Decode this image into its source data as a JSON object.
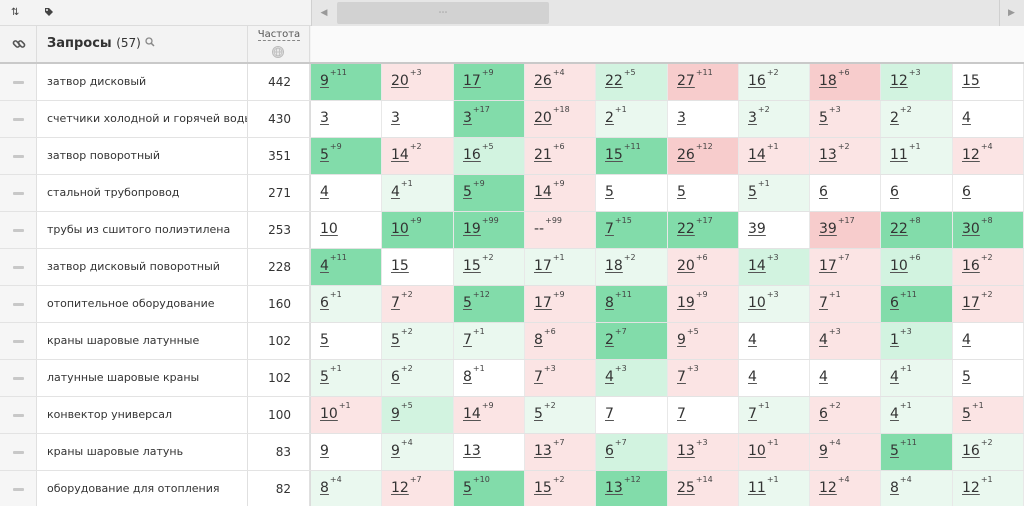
{
  "toolbar": {
    "sort_icon": "⇅",
    "tag_icon": "tag-icon",
    "scroll_left": "◀",
    "scroll_right": "▶",
    "scroll_thumb": "⋯"
  },
  "header": {
    "link_icon": "link-icon",
    "query_title": "Запросы",
    "query_count": "(57)",
    "search_icon": "search-icon",
    "freq_title": "Частота",
    "globe_icon": "globe-icon"
  },
  "colors": {
    "green_strong": "#82dcaa",
    "green_light": "#d2f3e0",
    "green_faint": "#eaf8ef",
    "red_strong": "#f7cccc",
    "red_light": "#fbe4e4",
    "neutral": "#ffffff"
  },
  "rows": [
    {
      "query": "затвор дисковый",
      "freq": "442",
      "positions": [
        {
          "v": "9",
          "d": "+11",
          "c": "gs"
        },
        {
          "v": "20",
          "d": "+3",
          "c": "rl"
        },
        {
          "v": "17",
          "d": "+9",
          "c": "gs"
        },
        {
          "v": "26",
          "d": "+4",
          "c": "rl"
        },
        {
          "v": "22",
          "d": "+5",
          "c": "gl"
        },
        {
          "v": "27",
          "d": "+11",
          "c": "rs"
        },
        {
          "v": "16",
          "d": "+2",
          "c": "gf"
        },
        {
          "v": "18",
          "d": "+6",
          "c": "rs"
        },
        {
          "v": "12",
          "d": "+3",
          "c": "gl"
        },
        {
          "v": "15",
          "d": "",
          "c": "n"
        }
      ]
    },
    {
      "query": "счетчики холодной и горячей воды",
      "freq": "430",
      "positions": [
        {
          "v": "3",
          "d": "",
          "c": "n"
        },
        {
          "v": "3",
          "d": "",
          "c": "n"
        },
        {
          "v": "3",
          "d": "+17",
          "c": "gs"
        },
        {
          "v": "20",
          "d": "+18",
          "c": "rl"
        },
        {
          "v": "2",
          "d": "+1",
          "c": "gf"
        },
        {
          "v": "3",
          "d": "",
          "c": "n"
        },
        {
          "v": "3",
          "d": "+2",
          "c": "gf"
        },
        {
          "v": "5",
          "d": "+3",
          "c": "rl"
        },
        {
          "v": "2",
          "d": "+2",
          "c": "gf"
        },
        {
          "v": "4",
          "d": "",
          "c": "n"
        }
      ]
    },
    {
      "query": "затвор поворотный",
      "freq": "351",
      "positions": [
        {
          "v": "5",
          "d": "+9",
          "c": "gs"
        },
        {
          "v": "14",
          "d": "+2",
          "c": "rl"
        },
        {
          "v": "16",
          "d": "+5",
          "c": "gl"
        },
        {
          "v": "21",
          "d": "+6",
          "c": "rl"
        },
        {
          "v": "15",
          "d": "+11",
          "c": "gs"
        },
        {
          "v": "26",
          "d": "+12",
          "c": "rs"
        },
        {
          "v": "14",
          "d": "+1",
          "c": "rl"
        },
        {
          "v": "13",
          "d": "+2",
          "c": "rl"
        },
        {
          "v": "11",
          "d": "+1",
          "c": "gf"
        },
        {
          "v": "12",
          "d": "+4",
          "c": "rl"
        }
      ]
    },
    {
      "query": "стальной трубопровод",
      "freq": "271",
      "positions": [
        {
          "v": "4",
          "d": "",
          "c": "n"
        },
        {
          "v": "4",
          "d": "+1",
          "c": "gf"
        },
        {
          "v": "5",
          "d": "+9",
          "c": "gs"
        },
        {
          "v": "14",
          "d": "+9",
          "c": "rl"
        },
        {
          "v": "5",
          "d": "",
          "c": "n"
        },
        {
          "v": "5",
          "d": "",
          "c": "n"
        },
        {
          "v": "5",
          "d": "+1",
          "c": "gf"
        },
        {
          "v": "6",
          "d": "",
          "c": "n"
        },
        {
          "v": "6",
          "d": "",
          "c": "n"
        },
        {
          "v": "6",
          "d": "",
          "c": "n"
        }
      ]
    },
    {
      "query": "трубы из сшитого полиэтилена",
      "freq": "253",
      "positions": [
        {
          "v": "10",
          "d": "",
          "c": "n"
        },
        {
          "v": "10",
          "d": "+9",
          "c": "gs"
        },
        {
          "v": "19",
          "d": "+99",
          "c": "gs"
        },
        {
          "v": "--",
          "d": "+99",
          "c": "rl"
        },
        {
          "v": "7",
          "d": "+15",
          "c": "gs"
        },
        {
          "v": "22",
          "d": "+17",
          "c": "gs"
        },
        {
          "v": "39",
          "d": "",
          "c": "n"
        },
        {
          "v": "39",
          "d": "+17",
          "c": "rs"
        },
        {
          "v": "22",
          "d": "+8",
          "c": "gs"
        },
        {
          "v": "30",
          "d": "+8",
          "c": "gs"
        }
      ]
    },
    {
      "query": "затвор дисковый поворотный",
      "freq": "228",
      "positions": [
        {
          "v": "4",
          "d": "+11",
          "c": "gs"
        },
        {
          "v": "15",
          "d": "",
          "c": "n"
        },
        {
          "v": "15",
          "d": "+2",
          "c": "gf"
        },
        {
          "v": "17",
          "d": "+1",
          "c": "gf"
        },
        {
          "v": "18",
          "d": "+2",
          "c": "gf"
        },
        {
          "v": "20",
          "d": "+6",
          "c": "rl"
        },
        {
          "v": "14",
          "d": "+3",
          "c": "gl"
        },
        {
          "v": "17",
          "d": "+7",
          "c": "rl"
        },
        {
          "v": "10",
          "d": "+6",
          "c": "gl"
        },
        {
          "v": "16",
          "d": "+2",
          "c": "rl"
        }
      ]
    },
    {
      "query": "отопительное оборудование",
      "freq": "160",
      "positions": [
        {
          "v": "6",
          "d": "+1",
          "c": "gf"
        },
        {
          "v": "7",
          "d": "+2",
          "c": "rl"
        },
        {
          "v": "5",
          "d": "+12",
          "c": "gs"
        },
        {
          "v": "17",
          "d": "+9",
          "c": "rl"
        },
        {
          "v": "8",
          "d": "+11",
          "c": "gs"
        },
        {
          "v": "19",
          "d": "+9",
          "c": "rl"
        },
        {
          "v": "10",
          "d": "+3",
          "c": "gf"
        },
        {
          "v": "7",
          "d": "+1",
          "c": "rl"
        },
        {
          "v": "6",
          "d": "+11",
          "c": "gs"
        },
        {
          "v": "17",
          "d": "+2",
          "c": "rl"
        }
      ]
    },
    {
      "query": "краны шаровые латунные",
      "freq": "102",
      "positions": [
        {
          "v": "5",
          "d": "",
          "c": "n"
        },
        {
          "v": "5",
          "d": "+2",
          "c": "gf"
        },
        {
          "v": "7",
          "d": "+1",
          "c": "gf"
        },
        {
          "v": "8",
          "d": "+6",
          "c": "rl"
        },
        {
          "v": "2",
          "d": "+7",
          "c": "gs"
        },
        {
          "v": "9",
          "d": "+5",
          "c": "rl"
        },
        {
          "v": "4",
          "d": "",
          "c": "n"
        },
        {
          "v": "4",
          "d": "+3",
          "c": "rl"
        },
        {
          "v": "1",
          "d": "+3",
          "c": "gl"
        },
        {
          "v": "4",
          "d": "",
          "c": "n"
        }
      ]
    },
    {
      "query": "латунные шаровые краны",
      "freq": "102",
      "positions": [
        {
          "v": "5",
          "d": "+1",
          "c": "gf"
        },
        {
          "v": "6",
          "d": "+2",
          "c": "gf"
        },
        {
          "v": "8",
          "d": "+1",
          "c": "n"
        },
        {
          "v": "7",
          "d": "+3",
          "c": "rl"
        },
        {
          "v": "4",
          "d": "+3",
          "c": "gl"
        },
        {
          "v": "7",
          "d": "+3",
          "c": "rl"
        },
        {
          "v": "4",
          "d": "",
          "c": "n"
        },
        {
          "v": "4",
          "d": "",
          "c": "n"
        },
        {
          "v": "4",
          "d": "+1",
          "c": "gf"
        },
        {
          "v": "5",
          "d": "",
          "c": "n"
        }
      ]
    },
    {
      "query": "конвектор универсал",
      "freq": "100",
      "positions": [
        {
          "v": "10",
          "d": "+1",
          "c": "rl"
        },
        {
          "v": "9",
          "d": "+5",
          "c": "gl"
        },
        {
          "v": "14",
          "d": "+9",
          "c": "rl"
        },
        {
          "v": "5",
          "d": "+2",
          "c": "gf"
        },
        {
          "v": "7",
          "d": "",
          "c": "n"
        },
        {
          "v": "7",
          "d": "",
          "c": "n"
        },
        {
          "v": "7",
          "d": "+1",
          "c": "gf"
        },
        {
          "v": "6",
          "d": "+2",
          "c": "rl"
        },
        {
          "v": "4",
          "d": "+1",
          "c": "gf"
        },
        {
          "v": "5",
          "d": "+1",
          "c": "rl"
        }
      ]
    },
    {
      "query": "краны шаровые латунь",
      "freq": "83",
      "positions": [
        {
          "v": "9",
          "d": "",
          "c": "n"
        },
        {
          "v": "9",
          "d": "+4",
          "c": "gf"
        },
        {
          "v": "13",
          "d": "",
          "c": "n"
        },
        {
          "v": "13",
          "d": "+7",
          "c": "rl"
        },
        {
          "v": "6",
          "d": "+7",
          "c": "gl"
        },
        {
          "v": "13",
          "d": "+3",
          "c": "rl"
        },
        {
          "v": "10",
          "d": "+1",
          "c": "rl"
        },
        {
          "v": "9",
          "d": "+4",
          "c": "rl"
        },
        {
          "v": "5",
          "d": "+11",
          "c": "gs"
        },
        {
          "v": "16",
          "d": "+2",
          "c": "gf"
        }
      ]
    },
    {
      "query": "оборудование для отопления",
      "freq": "82",
      "positions": [
        {
          "v": "8",
          "d": "+4",
          "c": "gf"
        },
        {
          "v": "12",
          "d": "+7",
          "c": "rl"
        },
        {
          "v": "5",
          "d": "+10",
          "c": "gs"
        },
        {
          "v": "15",
          "d": "+2",
          "c": "rl"
        },
        {
          "v": "13",
          "d": "+12",
          "c": "gs"
        },
        {
          "v": "25",
          "d": "+14",
          "c": "rl"
        },
        {
          "v": "11",
          "d": "+1",
          "c": "gf"
        },
        {
          "v": "12",
          "d": "+4",
          "c": "rl"
        },
        {
          "v": "8",
          "d": "+4",
          "c": "gf"
        },
        {
          "v": "12",
          "d": "+1",
          "c": "gf"
        }
      ]
    }
  ]
}
